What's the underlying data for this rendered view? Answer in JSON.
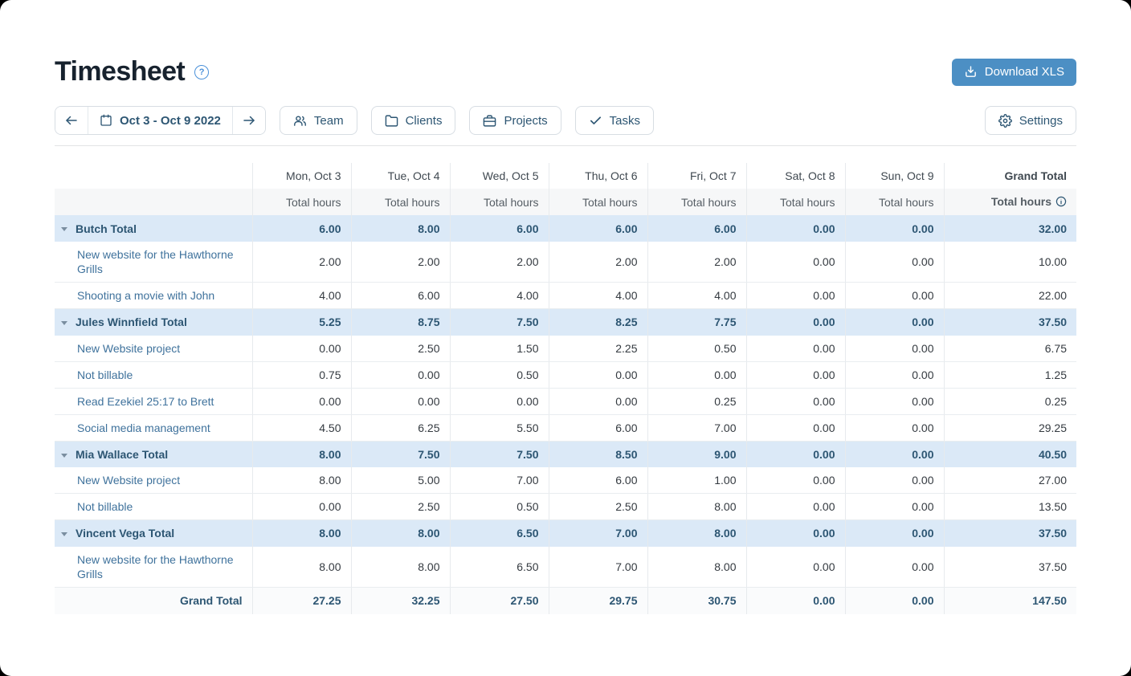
{
  "header": {
    "title": "Timesheet",
    "help_icon": "question-mark-circle-icon",
    "download_button": "Download XLS"
  },
  "toolbar": {
    "prev_icon": "arrow-left-icon",
    "next_icon": "arrow-right-icon",
    "calendar_icon": "calendar-icon",
    "date_range": "Oct 3 - Oct 9 2022",
    "filters": {
      "team": "Team",
      "clients": "Clients",
      "projects": "Projects",
      "tasks": "Tasks"
    },
    "filter_icons": [
      "team-icon",
      "folder-icon",
      "briefcase-icon",
      "check-icon"
    ],
    "settings": "Settings",
    "settings_icon": "gear-icon"
  },
  "table": {
    "day_headers": [
      "Mon, Oct 3",
      "Tue, Oct 4",
      "Wed, Oct 5",
      "Thu, Oct 6",
      "Fri, Oct 7",
      "Sat, Oct 8",
      "Sun, Oct 9"
    ],
    "subheader": "Total hours",
    "grand_total_header": "Grand Total",
    "grand_total_subheader": "Total hours",
    "grand_total_info_icon": "info-circle-icon",
    "groups": [
      {
        "label": "Butch Total",
        "values": [
          "6.00",
          "8.00",
          "6.00",
          "6.00",
          "6.00",
          "0.00",
          "0.00"
        ],
        "total": "32.00",
        "rows": [
          {
            "label": "New website for the Hawthorne Grills",
            "values": [
              "2.00",
              "2.00",
              "2.00",
              "2.00",
              "2.00",
              "0.00",
              "0.00"
            ],
            "total": "10.00"
          },
          {
            "label": "Shooting a movie with John",
            "values": [
              "4.00",
              "6.00",
              "4.00",
              "4.00",
              "4.00",
              "0.00",
              "0.00"
            ],
            "total": "22.00"
          }
        ]
      },
      {
        "label": "Jules Winnfield Total",
        "values": [
          "5.25",
          "8.75",
          "7.50",
          "8.25",
          "7.75",
          "0.00",
          "0.00"
        ],
        "total": "37.50",
        "rows": [
          {
            "label": "New Website project",
            "values": [
              "0.00",
              "2.50",
              "1.50",
              "2.25",
              "0.50",
              "0.00",
              "0.00"
            ],
            "total": "6.75"
          },
          {
            "label": "Not billable",
            "values": [
              "0.75",
              "0.00",
              "0.50",
              "0.00",
              "0.00",
              "0.00",
              "0.00"
            ],
            "total": "1.25"
          },
          {
            "label": "Read Ezekiel 25:17 to Brett",
            "values": [
              "0.00",
              "0.00",
              "0.00",
              "0.00",
              "0.25",
              "0.00",
              "0.00"
            ],
            "total": "0.25"
          },
          {
            "label": "Social media management",
            "values": [
              "4.50",
              "6.25",
              "5.50",
              "6.00",
              "7.00",
              "0.00",
              "0.00"
            ],
            "total": "29.25"
          }
        ]
      },
      {
        "label": "Mia Wallace Total",
        "values": [
          "8.00",
          "7.50",
          "7.50",
          "8.50",
          "9.00",
          "0.00",
          "0.00"
        ],
        "total": "40.50",
        "rows": [
          {
            "label": "New Website project",
            "values": [
              "8.00",
              "5.00",
              "7.00",
              "6.00",
              "1.00",
              "0.00",
              "0.00"
            ],
            "total": "27.00"
          },
          {
            "label": "Not billable",
            "values": [
              "0.00",
              "2.50",
              "0.50",
              "2.50",
              "8.00",
              "0.00",
              "0.00"
            ],
            "total": "13.50"
          }
        ]
      },
      {
        "label": "Vincent Vega Total",
        "values": [
          "8.00",
          "8.00",
          "6.50",
          "7.00",
          "8.00",
          "0.00",
          "0.00"
        ],
        "total": "37.50",
        "rows": [
          {
            "label": "New website for the Hawthorne Grills",
            "values": [
              "8.00",
              "8.00",
              "6.50",
              "7.00",
              "8.00",
              "0.00",
              "0.00"
            ],
            "total": "37.50"
          }
        ]
      }
    ],
    "grand_total_row": {
      "label": "Grand Total",
      "values": [
        "27.25",
        "32.25",
        "27.50",
        "29.75",
        "30.75",
        "0.00",
        "0.00"
      ],
      "total": "147.50"
    }
  },
  "colors": {
    "accent_blue": "#4c8fc4",
    "dark_blue_text": "#2d5673",
    "section_row_bg": "#dbe9f7",
    "link_blue": "#3f729c",
    "header_gray_bg": "#f6f7f8",
    "help_icon_blue": "#4a90d9"
  }
}
